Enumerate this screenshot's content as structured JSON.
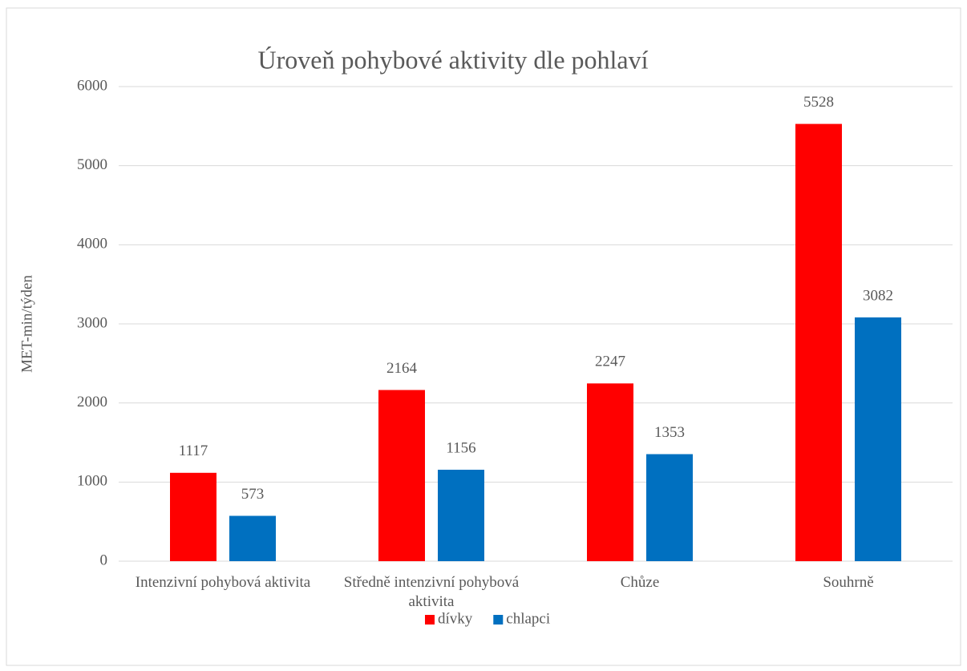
{
  "chart_data": {
    "type": "bar",
    "title": "Úroveň pohybové aktivity dle pohlaví",
    "y_label": "MET-min/týden",
    "categories": [
      "Intenzivní pohybová aktivita",
      "Středně intenzivní pohybová aktivita",
      "Chůze",
      "Souhrně"
    ],
    "series": [
      {
        "name": "dívky",
        "color": "#ff0000",
        "values": [
          1117,
          2164,
          2247,
          5528
        ]
      },
      {
        "name": "chlapci",
        "color": "#0070c0",
        "values": [
          573,
          1156,
          1353,
          3082
        ]
      }
    ],
    "ylim": [
      0,
      6000
    ],
    "yticks": [
      0,
      1000,
      2000,
      3000,
      4000,
      5000,
      6000
    ],
    "grid": true,
    "legend": "bottom"
  }
}
